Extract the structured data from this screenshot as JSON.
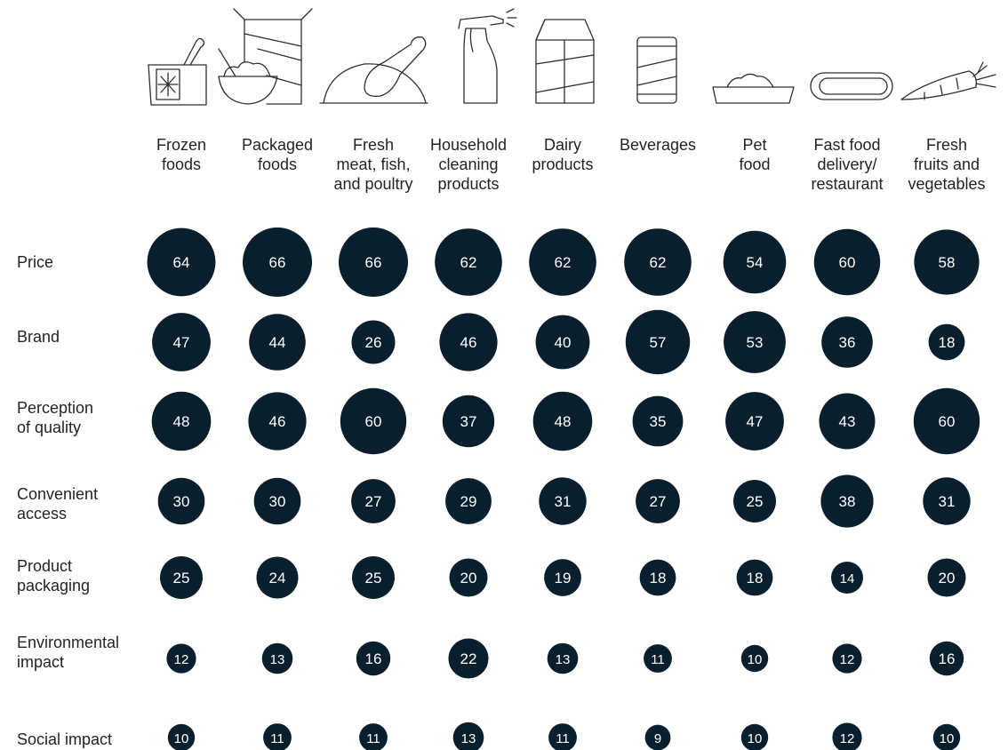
{
  "colors": {
    "bubble": "#0a1f2e",
    "bubble_text": "#ffffff",
    "icon_stroke": "#2b3035"
  },
  "icons": [
    "frozen-food-icon",
    "packaged-food-icon",
    "poultry-icon",
    "spray-bottle-icon",
    "milk-carton-icon",
    "can-icon",
    "pet-bowl-icon",
    "hot-dog-icon",
    "carrot-icon"
  ],
  "chart_data": {
    "type": "bubble-matrix",
    "categories": [
      "Frozen\nfoods",
      "Packaged\nfoods",
      "Fresh\nmeat, fish,\nand poultry",
      "Household\ncleaning\nproducts",
      "Dairy\nproducts",
      "Beverages",
      "Pet\nfood",
      "Fast food\ndelivery/\nrestaurant",
      "Fresh\nfruits and\nvegetables"
    ],
    "rows": [
      {
        "name": "Price",
        "values": [
          64,
          66,
          66,
          62,
          62,
          62,
          54,
          60,
          58
        ]
      },
      {
        "name": "Brand",
        "values": [
          47,
          44,
          26,
          46,
          40,
          57,
          53,
          36,
          18
        ]
      },
      {
        "name": "Perception\nof quality",
        "values": [
          48,
          46,
          60,
          37,
          48,
          35,
          47,
          43,
          60
        ]
      },
      {
        "name": "Convenient\naccess",
        "values": [
          30,
          30,
          27,
          29,
          31,
          27,
          25,
          38,
          31
        ]
      },
      {
        "name": "Product\npackaging",
        "values": [
          25,
          24,
          25,
          20,
          19,
          18,
          18,
          14,
          20
        ]
      },
      {
        "name": "Environmental\nimpact",
        "values": [
          12,
          13,
          16,
          22,
          13,
          11,
          10,
          12,
          16
        ]
      },
      {
        "name": "Social impact",
        "values": [
          10,
          11,
          11,
          13,
          11,
          9,
          10,
          12,
          10
        ]
      }
    ]
  }
}
